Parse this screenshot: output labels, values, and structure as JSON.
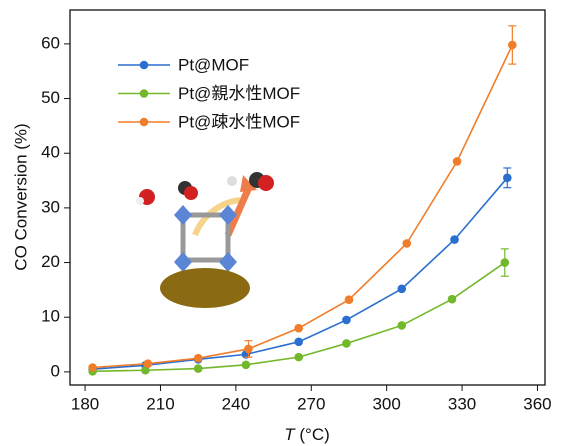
{
  "chart_data": {
    "type": "line",
    "x_label_symbol": "T",
    "x_label_unit": "(°C)",
    "y_label": "CO Conversion (%)",
    "xlim": [
      174,
      363
    ],
    "ylim": [
      -2.4,
      66.2
    ],
    "xticks": [
      180,
      210,
      240,
      270,
      300,
      330,
      360
    ],
    "yticks": [
      0,
      10,
      20,
      30,
      40,
      50,
      60
    ],
    "legend": "upper-left",
    "series": [
      {
        "name": "Pt@MOF",
        "color": "#2a6fcf",
        "x": [
          183,
          204,
          225,
          244,
          265,
          284,
          306,
          327,
          348
        ],
        "values": [
          0.5,
          1.2,
          2.3,
          3.2,
          5.5,
          9.5,
          15.2,
          24.2,
          35.5
        ],
        "errors": [
          null,
          null,
          null,
          null,
          null,
          null,
          null,
          null,
          1.8
        ]
      },
      {
        "name": "Pt@親水性MOF",
        "color": "#73b82a",
        "x": [
          183,
          204,
          225,
          244,
          265,
          284,
          306,
          326,
          347
        ],
        "values": [
          0.1,
          0.3,
          0.6,
          1.3,
          2.7,
          5.2,
          8.5,
          13.3,
          20.0
        ],
        "errors": [
          null,
          null,
          null,
          null,
          null,
          null,
          null,
          null,
          2.5
        ]
      },
      {
        "name": "Pt@疎水性MOF",
        "color": "#f07d2a",
        "x": [
          183,
          205,
          225,
          245,
          265,
          285,
          308,
          328,
          350
        ],
        "values": [
          0.8,
          1.5,
          2.5,
          4.2,
          8.0,
          13.2,
          23.5,
          38.5,
          59.8
        ],
        "errors": [
          null,
          null,
          null,
          1.5,
          null,
          null,
          null,
          null,
          3.5
        ]
      }
    ]
  }
}
